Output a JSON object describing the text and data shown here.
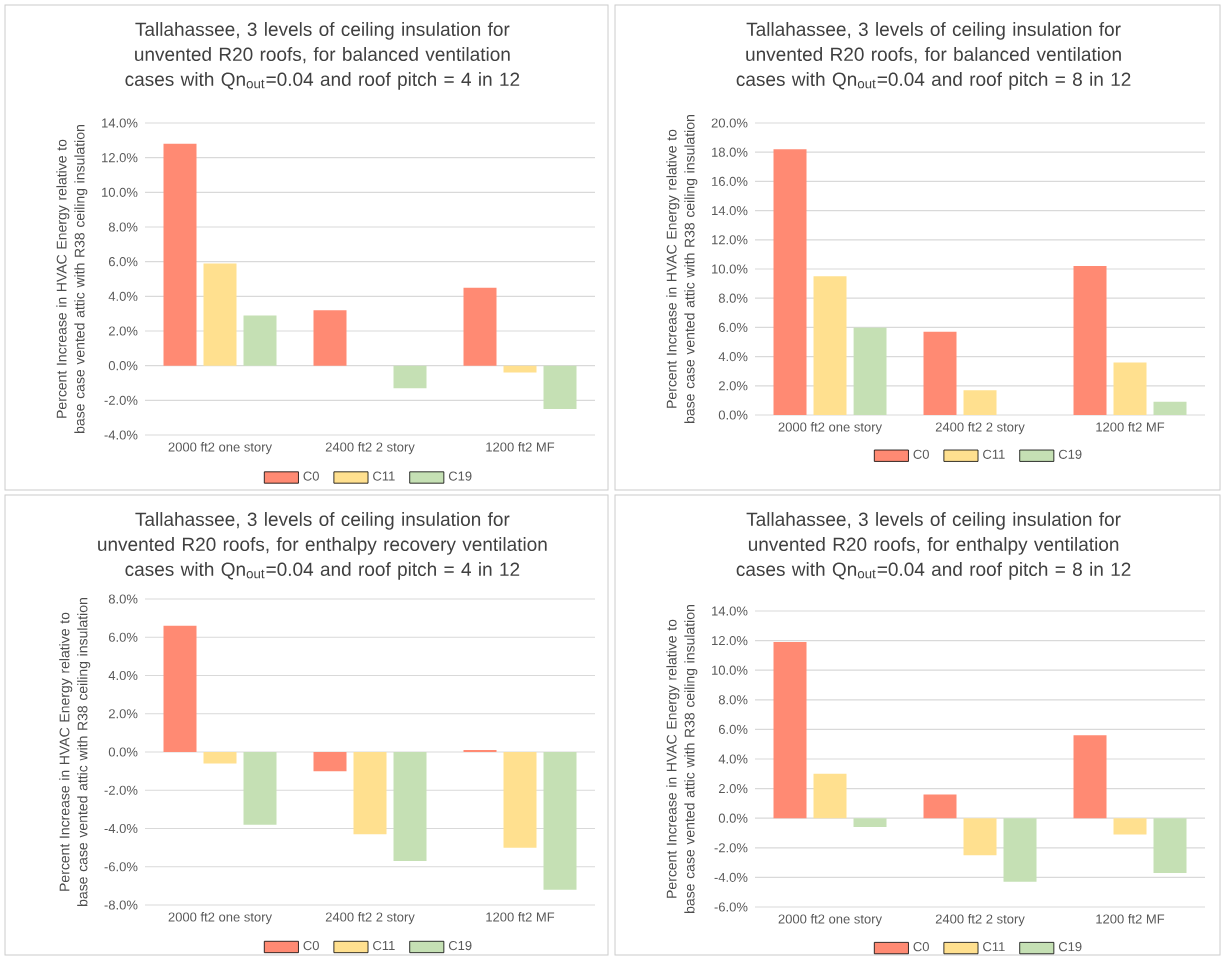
{
  "chart_data": [
    {
      "type": "bar",
      "title": "Tallahassee, 3 levels of ceiling insulation for unvented R20 roofs, for balanced ventilation cases with Qn$_{out}$=0.04 and roof pitch = 4 in 12",
      "ylabel": "Percent Increase in HVAC Energy relative to base case vented attic with R38 ceiling insulation",
      "categories": [
        "2000 ft2 one story",
        "2400 ft2 2 story",
        "1200 ft2 MF"
      ],
      "series": [
        {
          "name": "C0",
          "color": "#ff8a73",
          "values": [
            12.8,
            3.2,
            4.5
          ]
        },
        {
          "name": "C11",
          "color": "#ffe08f",
          "values": [
            5.9,
            0.0,
            -0.4
          ]
        },
        {
          "name": "C19",
          "color": "#c5e0b4",
          "values": [
            2.9,
            -1.3,
            -2.5
          ]
        }
      ],
      "ylim": [
        -4,
        14
      ],
      "yticks": [
        {
          "value": -4,
          "label": "-4.0%"
        },
        {
          "value": -2,
          "label": "-2.0%"
        },
        {
          "value": 0,
          "label": "0.0%"
        },
        {
          "value": 2,
          "label": "2.0%"
        },
        {
          "value": 4,
          "label": "4.0%"
        },
        {
          "value": 6,
          "label": "6.0%"
        },
        {
          "value": 8,
          "label": "8.0%"
        },
        {
          "value": 10,
          "label": "10.0%"
        },
        {
          "value": 12,
          "label": "12.0%"
        },
        {
          "value": 14,
          "label": "14.0%"
        }
      ],
      "grid": "y",
      "legend": "bottom"
    },
    {
      "type": "bar",
      "title": "Tallahassee, 3 levels of ceiling insulation for unvented R20 roofs, for balanced ventilation cases with Qn$_{out}$=0.04 and roof pitch = 8 in 12",
      "ylabel": "Percent Increase in HVAC Energy relative to base case vented attic with R38 ceiling insulation",
      "categories": [
        "2000 ft2 one story",
        "2400 ft2 2 story",
        "1200 ft2 MF"
      ],
      "series": [
        {
          "name": "C0",
          "color": "#ff8a73",
          "values": [
            18.2,
            5.7,
            10.2
          ]
        },
        {
          "name": "C11",
          "color": "#ffe08f",
          "values": [
            9.5,
            1.7,
            3.6
          ]
        },
        {
          "name": "C19",
          "color": "#c5e0b4",
          "values": [
            6.0,
            0.0,
            0.9
          ]
        }
      ],
      "ylim": [
        0,
        20
      ],
      "yticks": [
        {
          "value": 0,
          "label": "0.0%"
        },
        {
          "value": 2,
          "label": "2.0%"
        },
        {
          "value": 4,
          "label": "4.0%"
        },
        {
          "value": 6,
          "label": "6.0%"
        },
        {
          "value": 8,
          "label": "8.0%"
        },
        {
          "value": 10,
          "label": "10.0%"
        },
        {
          "value": 12,
          "label": "12.0%"
        },
        {
          "value": 14,
          "label": "14.0%"
        },
        {
          "value": 16,
          "label": "16.0%"
        },
        {
          "value": 18,
          "label": "18.0%"
        },
        {
          "value": 20,
          "label": "20.0%"
        }
      ],
      "grid": "y",
      "legend": "bottom"
    },
    {
      "type": "bar",
      "title": "Tallahassee, 3 levels of ceiling insulation for unvented R20 roofs, for enthalpy recovery ventilation cases with Qn$_{out}$=0.04 and roof pitch = 4 in 12",
      "ylabel": "Percent Increase in HVAC Energy relative to base case vented attic with R38 ceiling insulation",
      "categories": [
        "2000 ft2 one story",
        "2400 ft2 2 story",
        "1200 ft2 MF"
      ],
      "series": [
        {
          "name": "C0",
          "color": "#ff8a73",
          "values": [
            6.6,
            -1.0,
            0.1
          ]
        },
        {
          "name": "C11",
          "color": "#ffe08f",
          "values": [
            -0.6,
            -4.3,
            -5.0
          ]
        },
        {
          "name": "C19",
          "color": "#c5e0b4",
          "values": [
            -3.8,
            -5.7,
            -7.2
          ]
        }
      ],
      "ylim": [
        -8,
        8
      ],
      "yticks": [
        {
          "value": -8,
          "label": "-8.0%"
        },
        {
          "value": -6,
          "label": "-6.0%"
        },
        {
          "value": -4,
          "label": "-4.0%"
        },
        {
          "value": -2,
          "label": "-2.0%"
        },
        {
          "value": 0,
          "label": "0.0%"
        },
        {
          "value": 2,
          "label": "2.0%"
        },
        {
          "value": 4,
          "label": "4.0%"
        },
        {
          "value": 6,
          "label": "6.0%"
        },
        {
          "value": 8,
          "label": "8.0%"
        }
      ],
      "grid": "y",
      "legend": "bottom"
    },
    {
      "type": "bar",
      "title": "Tallahassee, 3 levels of ceiling insulation for unvented R20 roofs, for enthalpy ventilation cases with Qn$_{out}$=0.04 and roof pitch = 8 in 12",
      "ylabel": "Percent Increase in HVAC Energy relative to base case vented attic with R38 ceiling insulation",
      "categories": [
        "2000 ft2 one story",
        "2400 ft2 2 story",
        "1200 ft2 MF"
      ],
      "series": [
        {
          "name": "C0",
          "color": "#ff8a73",
          "values": [
            11.9,
            1.6,
            5.6
          ]
        },
        {
          "name": "C11",
          "color": "#ffe08f",
          "values": [
            3.0,
            -2.5,
            -1.1
          ]
        },
        {
          "name": "C19",
          "color": "#c5e0b4",
          "values": [
            -0.6,
            -4.3,
            -3.7
          ]
        }
      ],
      "ylim": [
        -6,
        14
      ],
      "yticks": [
        {
          "value": -6,
          "label": "-6.0%"
        },
        {
          "value": -4,
          "label": "-4.0%"
        },
        {
          "value": -2,
          "label": "-2.0%"
        },
        {
          "value": 0,
          "label": "0.0%"
        },
        {
          "value": 2,
          "label": "2.0%"
        },
        {
          "value": 4,
          "label": "4.0%"
        },
        {
          "value": 6,
          "label": "6.0%"
        },
        {
          "value": 8,
          "label": "8.0%"
        },
        {
          "value": 10,
          "label": "10.0%"
        },
        {
          "value": 12,
          "label": "12.0%"
        },
        {
          "value": 14,
          "label": "14.0%"
        }
      ],
      "grid": "y",
      "legend": "bottom"
    }
  ]
}
